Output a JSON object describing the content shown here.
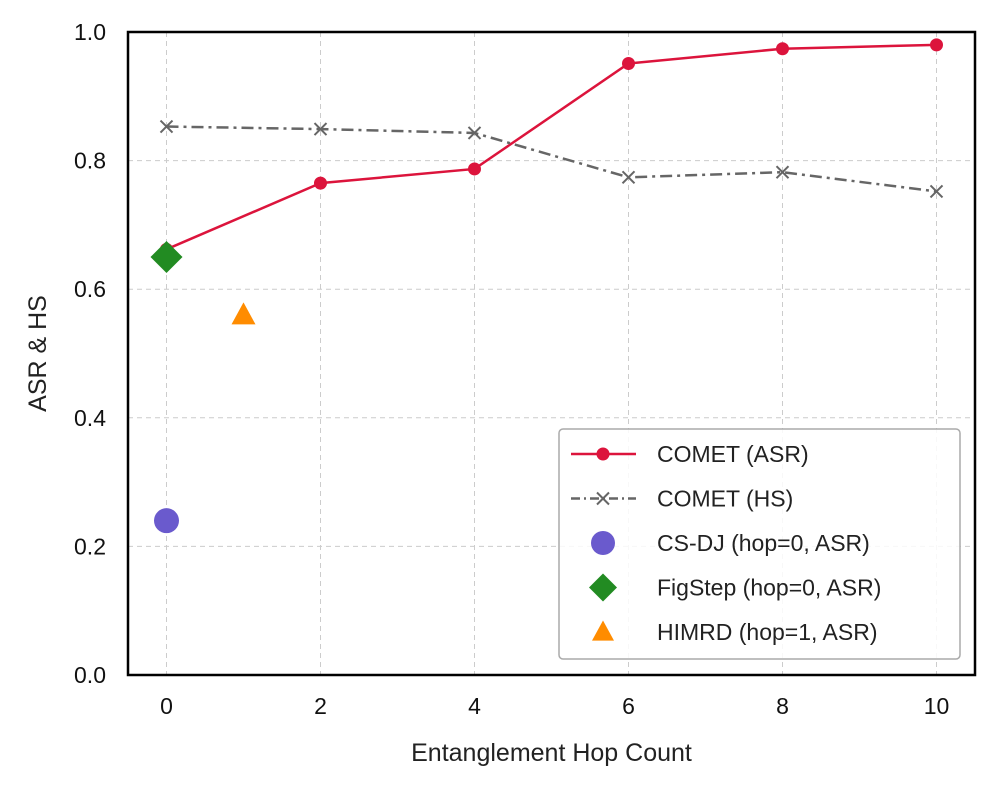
{
  "chart_data": {
    "type": "line",
    "title": "",
    "xlabel": "Entanglement Hop Count",
    "ylabel": "ASR & HS",
    "xlim": [
      -0.5,
      10.5
    ],
    "ylim": [
      0.0,
      1.0
    ],
    "x_ticks": [
      0,
      2,
      4,
      6,
      8,
      10
    ],
    "x_tick_labels": [
      "0",
      "2",
      "4",
      "6",
      "8",
      "10"
    ],
    "y_ticks": [
      0.0,
      0.2,
      0.4,
      0.6,
      0.8,
      1.0
    ],
    "y_tick_labels": [
      "0.0",
      "0.2",
      "0.4",
      "0.6",
      "0.8",
      "1.0"
    ],
    "grid": true,
    "legend_position": "lower-right",
    "series": [
      {
        "name": "COMET (ASR)",
        "kind": "line",
        "marker": "circle",
        "line_style": "solid",
        "color": "#dc143c",
        "x": [
          0,
          2,
          4,
          6,
          8,
          10
        ],
        "values": [
          0.662,
          0.765,
          0.787,
          0.951,
          0.974,
          0.98
        ]
      },
      {
        "name": "COMET (HS)",
        "kind": "line",
        "marker": "x",
        "line_style": "dashdot",
        "color": "#666666",
        "x": [
          0,
          2,
          4,
          6,
          8,
          10
        ],
        "values": [
          0.853,
          0.849,
          0.843,
          0.774,
          0.782,
          0.752
        ]
      },
      {
        "name": "CS-DJ (hop=0, ASR)",
        "kind": "point",
        "marker": "circle",
        "color": "#6a5acd",
        "x": [
          0
        ],
        "values": [
          0.24
        ]
      },
      {
        "name": "FigStep (hop=0, ASR)",
        "kind": "point",
        "marker": "diamond",
        "color": "#228b22",
        "x": [
          0
        ],
        "values": [
          0.65
        ]
      },
      {
        "name": "HIMRD (hop=1, ASR)",
        "kind": "point",
        "marker": "triangle",
        "color": "#ff8c00",
        "x": [
          1
        ],
        "values": [
          0.56
        ]
      }
    ]
  }
}
